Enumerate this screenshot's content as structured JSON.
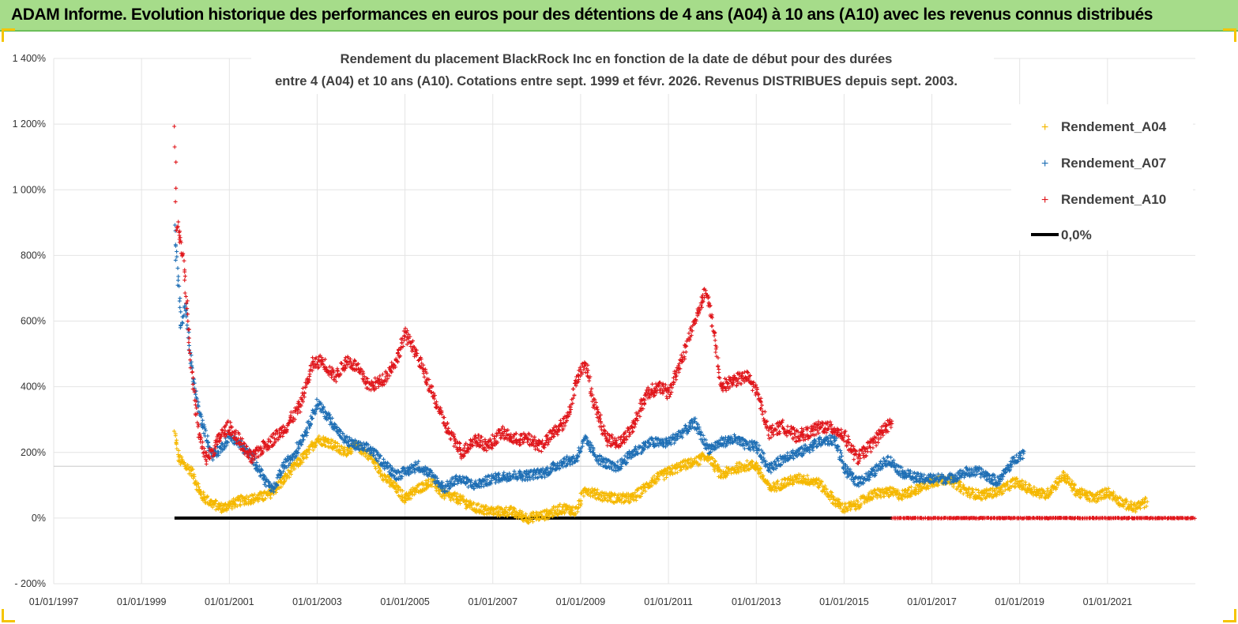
{
  "banner": {
    "title": "ADAM Informe. Evolution historique des performances en euros pour des détentions de 4 ans (A04) à 10 ans (A10) avec les revenus connus distribués"
  },
  "colors": {
    "a04": "#f5b800",
    "a07": "#1f6fb5",
    "a10": "#e0161b",
    "zero": "#000000",
    "banner": "#a6dc8a"
  },
  "chart_data": {
    "type": "scatter",
    "title": [
      "Rendement du placement BlackRock Inc en fonction de la date de début pour des durées",
      "entre 4 (A04) et 10 ans (A10). Cotations entre sept. 1999 et févr. 2026. Revenus DISTRIBUES depuis sept. 2003."
    ],
    "xlabel": "",
    "ylabel": "",
    "xlim": [
      1997.0,
      2023.0
    ],
    "ylim": [
      -200,
      1400
    ],
    "xticks": [
      "01/01/1997",
      "01/01/1999",
      "01/01/2001",
      "01/01/2003",
      "01/01/2005",
      "01/01/2007",
      "01/01/2009",
      "01/01/2011",
      "01/01/2013",
      "01/01/2015",
      "01/01/2017",
      "01/01/2019",
      "01/01/2021"
    ],
    "yticks": [
      "1 400%",
      "1 200%",
      "1 000%",
      "800%",
      "600%",
      "400%",
      "200%",
      "0%",
      "- 200%"
    ],
    "legend_position": "top-right",
    "series": [
      {
        "name": "Rendement_A04",
        "marker": "+",
        "x": [
          1999.75,
          1999.85,
          2000.0,
          2000.15,
          2000.35,
          2000.6,
          2000.85,
          2001.0,
          2001.3,
          2001.6,
          2001.9,
          2002.2,
          2002.5,
          2002.8,
          2003.0,
          2003.3,
          2003.6,
          2003.9,
          2004.2,
          2004.5,
          2004.8,
          2005.0,
          2005.3,
          2005.6,
          2005.9,
          2006.2,
          2006.6,
          2007.0,
          2007.4,
          2007.8,
          2008.2,
          2008.6,
          2008.9,
          2009.1,
          2009.4,
          2009.8,
          2010.2,
          2010.6,
          2011.0,
          2011.3,
          2011.6,
          2011.9,
          2012.2,
          2012.5,
          2012.8,
          2013.0,
          2013.3,
          2013.7,
          2014.0,
          2014.4,
          2014.8,
          2015.0,
          2015.3,
          2015.6,
          2016.0,
          2016.3,
          2016.7,
          2017.0,
          2017.4,
          2017.8,
          2018.1,
          2018.5,
          2018.9,
          2019.2,
          2019.6,
          2020.0,
          2020.3,
          2020.7,
          2021.0,
          2021.3,
          2021.6,
          2021.9
        ],
        "y": [
          260,
          180,
          160,
          140,
          70,
          45,
          30,
          40,
          55,
          60,
          70,
          110,
          160,
          200,
          240,
          230,
          200,
          220,
          190,
          130,
          90,
          60,
          90,
          110,
          70,
          60,
          30,
          20,
          20,
          0,
          10,
          30,
          20,
          90,
          70,
          60,
          60,
          110,
          140,
          160,
          170,
          190,
          130,
          150,
          160,
          160,
          90,
          110,
          120,
          110,
          50,
          30,
          40,
          70,
          80,
          70,
          90,
          110,
          120,
          80,
          70,
          80,
          110,
          90,
          70,
          130,
          80,
          60,
          80,
          50,
          30,
          50
        ]
      },
      {
        "name": "Rendement_A07",
        "marker": "+",
        "x": [
          1999.75,
          1999.82,
          1999.9,
          2000.0,
          2000.15,
          2000.3,
          2000.45,
          2000.6,
          2000.8,
          2001.0,
          2001.2,
          2001.5,
          2001.8,
          2002.0,
          2002.2,
          2002.5,
          2002.8,
          2003.0,
          2003.3,
          2003.6,
          2003.9,
          2004.2,
          2004.5,
          2004.8,
          2005.0,
          2005.3,
          2005.6,
          2005.9,
          2006.2,
          2006.6,
          2007.0,
          2007.4,
          2007.8,
          2008.2,
          2008.6,
          2008.9,
          2009.1,
          2009.4,
          2009.8,
          2010.2,
          2010.6,
          2011.0,
          2011.3,
          2011.6,
          2011.9,
          2012.2,
          2012.5,
          2012.8,
          2013.0,
          2013.3,
          2013.7,
          2014.0,
          2014.4,
          2014.8,
          2015.0,
          2015.3,
          2015.6,
          2016.0,
          2016.3,
          2016.7,
          2017.0,
          2017.4,
          2017.8,
          2018.1,
          2018.5,
          2018.9,
          2019.1
        ],
        "y": [
          880,
          750,
          580,
          650,
          450,
          330,
          260,
          190,
          210,
          250,
          230,
          190,
          120,
          80,
          150,
          200,
          280,
          350,
          300,
          240,
          220,
          210,
          170,
          130,
          140,
          160,
          130,
          90,
          120,
          100,
          120,
          130,
          130,
          140,
          170,
          180,
          240,
          180,
          150,
          200,
          230,
          230,
          260,
          290,
          210,
          230,
          240,
          220,
          220,
          150,
          190,
          200,
          230,
          240,
          150,
          110,
          130,
          180,
          140,
          120,
          120,
          120,
          140,
          140,
          110,
          180,
          200
        ]
      },
      {
        "name": "Rendement_A10",
        "marker": "+",
        "x": [
          1999.75,
          1999.8,
          1999.88,
          1999.95,
          2000.05,
          2000.15,
          2000.3,
          2000.45,
          2000.6,
          2000.8,
          2001.0,
          2001.2,
          2001.5,
          2001.8,
          2002.0,
          2002.3,
          2002.6,
          2002.9,
          2003.1,
          2003.4,
          2003.7,
          2003.9,
          2004.2,
          2004.5,
          2004.8,
          2005.0,
          2005.2,
          2005.5,
          2005.8,
          2006.0,
          2006.3,
          2006.6,
          2006.9,
          2007.2,
          2007.5,
          2007.8,
          2008.1,
          2008.4,
          2008.7,
          2008.9,
          2009.1,
          2009.3,
          2009.6,
          2009.9,
          2010.2,
          2010.5,
          2010.8,
          2011.0,
          2011.3,
          2011.5,
          2011.7,
          2011.85,
          2012.0,
          2012.2,
          2012.5,
          2012.8,
          2013.0,
          2013.3,
          2013.6,
          2013.9,
          2014.2,
          2014.5,
          2014.8,
          2015.0,
          2015.3,
          2015.6,
          2015.9,
          2016.1
        ],
        "y": [
          1200,
          900,
          850,
          800,
          620,
          430,
          260,
          180,
          200,
          250,
          280,
          240,
          180,
          220,
          240,
          280,
          340,
          470,
          480,
          430,
          480,
          460,
          400,
          420,
          480,
          560,
          520,
          420,
          320,
          260,
          200,
          240,
          220,
          260,
          240,
          240,
          220,
          260,
          300,
          420,
          480,
          350,
          240,
          230,
          280,
          380,
          400,
          380,
          480,
          560,
          640,
          690,
          600,
          400,
          420,
          430,
          390,
          260,
          280,
          250,
          260,
          280,
          270,
          250,
          180,
          220,
          270,
          290
        ]
      },
      {
        "name": "0,0%",
        "style": "line",
        "x": [
          1999.75,
          2016.1
        ],
        "y": [
          0,
          0
        ]
      },
      {
        "name": "Rendement_A10 (zero band)",
        "marker": "+",
        "x": [
          2016.1,
          2023.0
        ],
        "y": [
          0,
          0
        ]
      }
    ]
  }
}
